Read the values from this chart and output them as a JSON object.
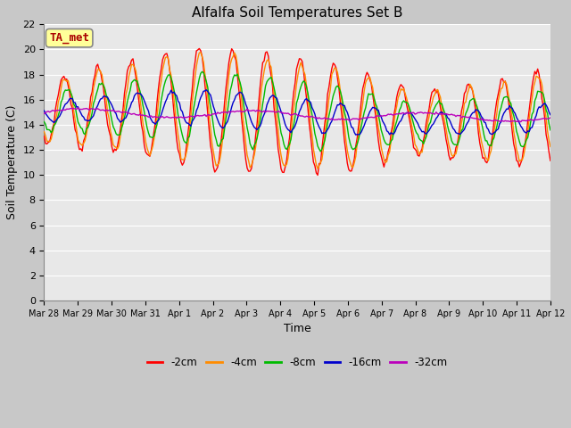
{
  "title": "Alfalfa Soil Temperatures Set B",
  "xlabel": "Time",
  "ylabel": "Soil Temperature (C)",
  "ylim": [
    0,
    22
  ],
  "yticks": [
    0,
    2,
    4,
    6,
    8,
    10,
    12,
    14,
    16,
    18,
    20,
    22
  ],
  "x_labels": [
    "Mar 28",
    "Mar 29",
    "Mar 30",
    "Mar 31",
    "Apr 1",
    "Apr 2",
    "Apr 3",
    "Apr 4",
    "Apr 5",
    "Apr 6",
    "Apr 7",
    "Apr 8",
    "Apr 9",
    "Apr 10",
    "Apr 11",
    "Apr 12"
  ],
  "colors": {
    "-2cm": "#ff0000",
    "-4cm": "#ff8c00",
    "-8cm": "#00bb00",
    "-16cm": "#0000cc",
    "-32cm": "#bb00bb"
  },
  "annotation_text": "TA_met",
  "annotation_color": "#aa0000",
  "annotation_bg": "#ffff99",
  "fig_bg": "#c8c8c8",
  "plot_bg": "#e8e8e8",
  "grid_color": "#ffffff",
  "title_fontsize": 11,
  "label_fontsize": 9,
  "tick_fontsize": 8
}
